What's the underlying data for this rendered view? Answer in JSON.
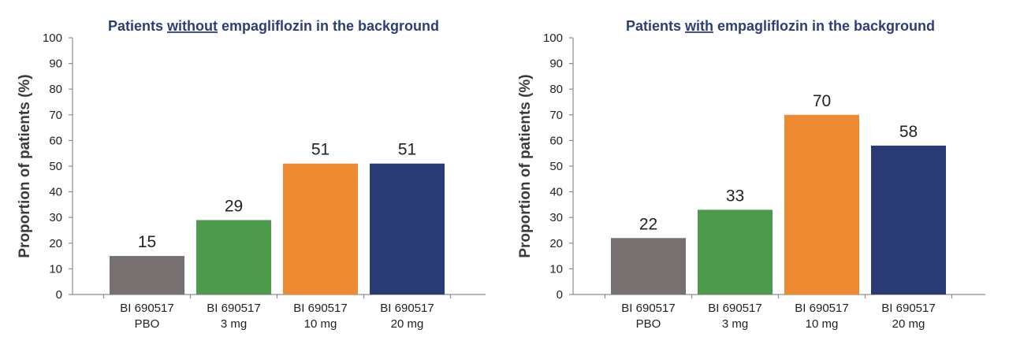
{
  "chart_data": [
    {
      "type": "bar",
      "title_parts": [
        "Patients ",
        "without",
        " empagliflozin in the background"
      ],
      "ylabel": "Proportion of patients (%)",
      "xlabel": "",
      "ylim": [
        0,
        100
      ],
      "yticks": [
        "0",
        "10",
        "20",
        "30",
        "40",
        "50",
        "60",
        "70",
        "80",
        "90",
        "100"
      ],
      "categories": [
        [
          "BI 690517",
          "PBO"
        ],
        [
          "BI 690517",
          "3 mg"
        ],
        [
          "BI 690517",
          "10 mg"
        ],
        [
          "BI 690517",
          "20 mg"
        ]
      ],
      "values": [
        15,
        29,
        51,
        51
      ],
      "value_labels": [
        "15",
        "29",
        "51",
        "51"
      ],
      "colors": [
        "#767170",
        "#4e9a4d",
        "#ee8a32",
        "#293a74"
      ],
      "title_color": "#2e3d7a",
      "grid": false,
      "legend": "none"
    },
    {
      "type": "bar",
      "title_parts": [
        "Patients ",
        "with",
        " empagliflozin in the background"
      ],
      "ylabel": "Proportion of patients (%)",
      "xlabel": "",
      "ylim": [
        0,
        100
      ],
      "yticks": [
        "0",
        "10",
        "20",
        "30",
        "40",
        "50",
        "60",
        "70",
        "80",
        "90",
        "100"
      ],
      "categories": [
        [
          "BI 690517",
          "PBO"
        ],
        [
          "BI 690517",
          "3 mg"
        ],
        [
          "BI 690517",
          "10 mg"
        ],
        [
          "BI 690517",
          "20 mg"
        ]
      ],
      "values": [
        22,
        33,
        70,
        58
      ],
      "value_labels": [
        "22",
        "33",
        "70",
        "58"
      ],
      "colors": [
        "#767170",
        "#4e9a4d",
        "#ee8a32",
        "#293a74"
      ],
      "title_color": "#2e3d7a",
      "grid": false,
      "legend": "none"
    }
  ]
}
